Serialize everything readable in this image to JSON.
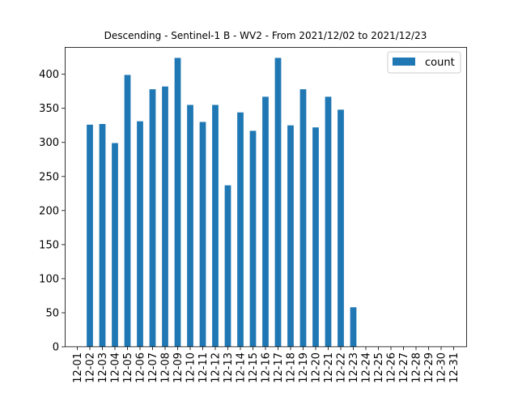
{
  "chart_data": {
    "type": "bar",
    "title": "Descending - Sentinel-1 B - WV2 - From 2021/12/02 to 2021/12/23",
    "xlabel": "",
    "ylabel": "",
    "ylim": [
      0,
      440
    ],
    "yticks": [
      0,
      50,
      100,
      150,
      200,
      250,
      300,
      350,
      400
    ],
    "grid": false,
    "legend_position": "top-right",
    "categories": [
      "12-01",
      "12-02",
      "12-03",
      "12-04",
      "12-05",
      "12-06",
      "12-07",
      "12-08",
      "12-09",
      "12-10",
      "12-11",
      "12-12",
      "12-13",
      "12-14",
      "12-15",
      "12-16",
      "12-17",
      "12-18",
      "12-19",
      "12-20",
      "12-21",
      "12-22",
      "12-23",
      "12-24",
      "12-25",
      "12-26",
      "12-27",
      "12-28",
      "12-29",
      "12-30",
      "12-31"
    ],
    "series": [
      {
        "name": "count",
        "color": "#1f77b4",
        "values": [
          0,
          326,
          327,
          299,
          399,
          331,
          378,
          382,
          424,
          355,
          330,
          355,
          237,
          344,
          317,
          367,
          424,
          325,
          378,
          322,
          367,
          348,
          58,
          0,
          0,
          0,
          0,
          0,
          0,
          0,
          0
        ]
      }
    ]
  }
}
